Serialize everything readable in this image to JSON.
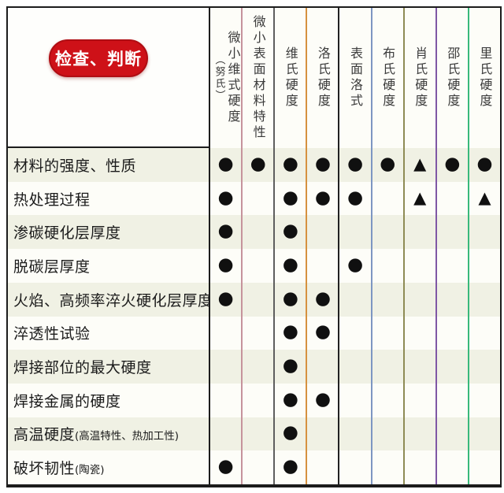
{
  "badge": {
    "label": "检查、判断"
  },
  "colors": {
    "badge_bg": "#ce1118",
    "badge_border": "#b00d13",
    "badge_text": "#ffffff",
    "border": "#1c1c1c",
    "stripe_odd": "#f0f1e4",
    "stripe_even": "#fdfdf8",
    "mark": "#101010"
  },
  "chart_data": {
    "type": "table",
    "title": "检查、判断",
    "columns": [
      {
        "label": "微小维式硬度",
        "sub": "（努氏）",
        "line_color": "#c6939c"
      },
      {
        "label": "微小表面材料特性",
        "sub": "",
        "line_color": "#5e5e5e"
      },
      {
        "label": "维氏硬度",
        "sub": "",
        "line_color": "#d6913f"
      },
      {
        "label": "洛氏硬度",
        "sub": "",
        "line_color": "#222222"
      },
      {
        "label": "表面洛式",
        "sub": "",
        "line_color": "#7d96c2"
      },
      {
        "label": "布氏硬度",
        "sub": "",
        "line_color": "#8e8b55"
      },
      {
        "label": "肖氏硬度",
        "sub": "",
        "line_color": "#7f57a5"
      },
      {
        "label": "邵氏硬度",
        "sub": "",
        "line_color": "#38b97b"
      },
      {
        "label": "里氏硬度",
        "sub": "",
        "line_color": "#1c1c1c"
      }
    ],
    "rows": [
      {
        "label": "材料的强度、性质",
        "note": "",
        "marks": [
          "dot",
          "dot",
          "dot",
          "dot",
          "dot",
          "dot",
          "triangle",
          "dot",
          "dot"
        ]
      },
      {
        "label": "热处理过程",
        "note": "",
        "marks": [
          "dot",
          "",
          "dot",
          "dot",
          "dot",
          "",
          "triangle",
          "",
          "triangle"
        ]
      },
      {
        "label": "渗碳硬化层厚度",
        "note": "",
        "marks": [
          "dot",
          "",
          "dot",
          "",
          "",
          "",
          "",
          "",
          ""
        ]
      },
      {
        "label": "脱碳层厚度",
        "note": "",
        "marks": [
          "dot",
          "",
          "dot",
          "",
          "dot",
          "",
          "",
          "",
          ""
        ]
      },
      {
        "label": "火焰、高频率淬火硬化层厚度",
        "note": "",
        "marks": [
          "dot",
          "",
          "dot",
          "dot",
          "",
          "",
          "",
          "",
          ""
        ]
      },
      {
        "label": "淬透性试验",
        "note": "",
        "marks": [
          "",
          "",
          "dot",
          "dot",
          "",
          "",
          "",
          "",
          ""
        ]
      },
      {
        "label": "焊接部位的最大硬度",
        "note": "",
        "marks": [
          "",
          "",
          "dot",
          "",
          "",
          "",
          "",
          "",
          ""
        ]
      },
      {
        "label": "焊接金属的硬度",
        "note": "",
        "marks": [
          "",
          "",
          "dot",
          "dot",
          "",
          "",
          "",
          "",
          ""
        ]
      },
      {
        "label": "高温硬度",
        "note": "(高温特性、热加工性)",
        "marks": [
          "",
          "",
          "dot",
          "",
          "",
          "",
          "",
          "",
          ""
        ]
      },
      {
        "label": "破坏韧性",
        "note": "(陶瓷)",
        "marks": [
          "dot",
          "",
          "dot",
          "",
          "",
          "",
          "",
          "",
          ""
        ]
      }
    ],
    "glyphs": {
      "dot": "●",
      "triangle": "▲"
    }
  }
}
